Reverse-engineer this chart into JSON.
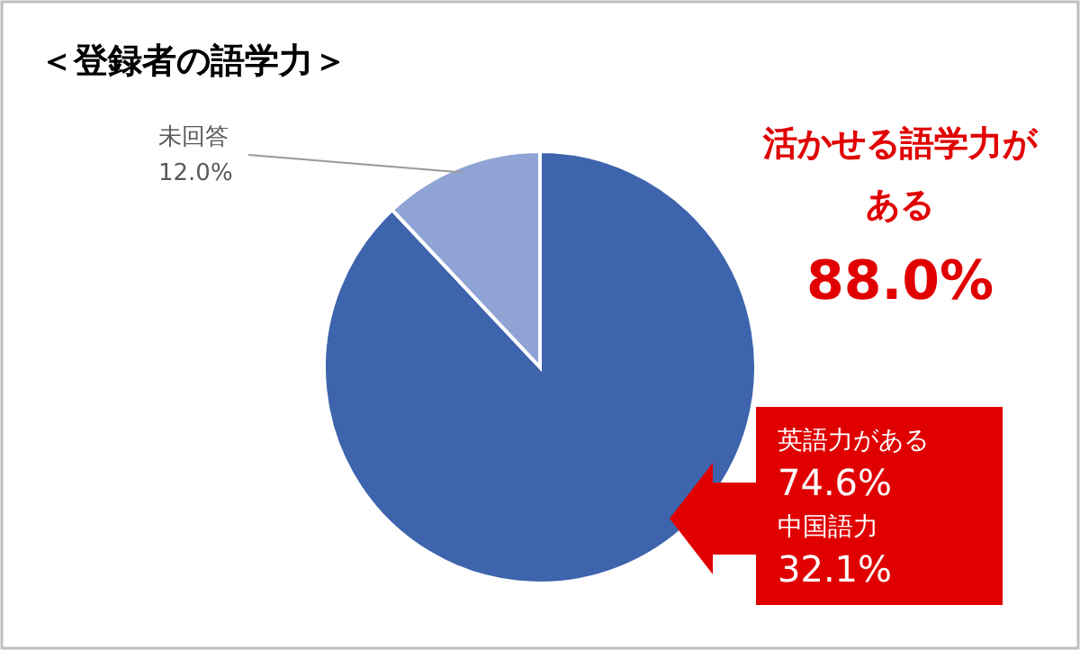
{
  "chart_data": {
    "type": "pie",
    "title": "＜登録者の語学力＞",
    "categories": [
      "活かせる語学力がある",
      "未回答"
    ],
    "values": [
      88.0,
      12.0
    ],
    "colors": [
      "#3d64ad",
      "#8fa3d5"
    ],
    "value_labels": [
      "88.0%",
      "12.0%"
    ],
    "annotations": [
      "英語力がある",
      "74.6%",
      "中国語力",
      "32.1%"
    ]
  }
}
